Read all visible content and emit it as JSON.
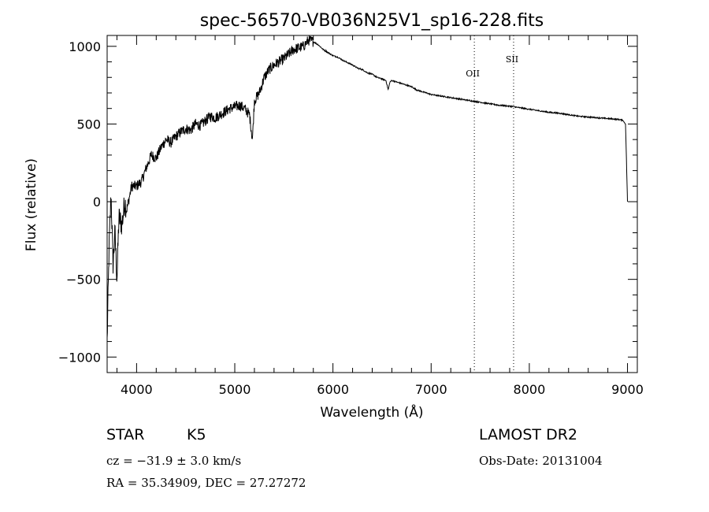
{
  "chart_data": {
    "type": "line",
    "title": "spec-56570-VB036N25V1_sp16-228.fits",
    "xlabel": "Wavelength (Å)",
    "ylabel": "Flux (relative)",
    "xlim": [
      3700,
      9100
    ],
    "ylim": [
      -1100,
      1070
    ],
    "xticks": [
      "4000",
      "5000",
      "6000",
      "7000",
      "8000",
      "9000"
    ],
    "yticks": [
      "−1000",
      "−500",
      "0",
      "500",
      "1000"
    ],
    "xtick_values": [
      4000,
      5000,
      6000,
      7000,
      8000,
      9000
    ],
    "ytick_values": [
      -1000,
      -500,
      0,
      500,
      1000
    ],
    "series": [
      {
        "x": [
          3700,
          3720,
          3740,
          3760,
          3780,
          3800,
          3820,
          3850,
          3880,
          3900,
          3950,
          4000,
          4050,
          4100,
          4150,
          4200,
          4250,
          4300,
          4350,
          4400,
          4450,
          4500,
          4550,
          4600,
          4650,
          4700,
          4750,
          4800,
          4850,
          4900,
          4950,
          5000,
          5050,
          5100,
          5150,
          5180,
          5200,
          5250,
          5300,
          5350,
          5400,
          5450,
          5500,
          5550,
          5600,
          5650,
          5700,
          5750,
          5800,
          5850,
          5900,
          5950,
          6000,
          6050,
          6100,
          6150,
          6200,
          6250,
          6300,
          6350,
          6400,
          6450,
          6500,
          6540,
          6563,
          6580,
          6600,
          6650,
          6700,
          6750,
          6800,
          6850,
          6900,
          6950,
          7000,
          7100,
          7200,
          7300,
          7400,
          7500,
          7600,
          7700,
          7800,
          7900,
          8000,
          8100,
          8200,
          8300,
          8400,
          8500,
          8600,
          8700,
          8800,
          8900,
          8950,
          8980,
          9000
        ],
        "y": [
          -900,
          -300,
          50,
          -400,
          -200,
          -500,
          -100,
          -150,
          0,
          -50,
          100,
          100,
          130,
          220,
          300,
          280,
          350,
          400,
          380,
          420,
          450,
          470,
          460,
          500,
          490,
          520,
          550,
          540,
          560,
          580,
          600,
          610,
          620,
          600,
          560,
          400,
          650,
          700,
          800,
          850,
          880,
          900,
          920,
          950,
          980,
          990,
          1000,
          1040,
          1030,
          1010,
          980,
          960,
          940,
          930,
          910,
          895,
          880,
          860,
          850,
          830,
          820,
          800,
          790,
          780,
          720,
          770,
          780,
          770,
          760,
          750,
          740,
          720,
          710,
          700,
          690,
          680,
          670,
          660,
          650,
          640,
          630,
          620,
          615,
          605,
          595,
          585,
          575,
          570,
          560,
          550,
          545,
          540,
          535,
          530,
          525,
          500,
          0
        ]
      }
    ],
    "lines": [
      {
        "x": 7440,
        "label": "OII"
      },
      {
        "x": 7840,
        "label": "SII"
      }
    ]
  },
  "info": {
    "object_class": "STAR",
    "subclass": "K5",
    "velocity": "cz = −31.9 ± 3.0 km/s",
    "coords": "RA =  35.34909, DEC =  27.27272",
    "survey": "LAMOST DR2",
    "obs_date": "Obs-Date: 20131004"
  }
}
